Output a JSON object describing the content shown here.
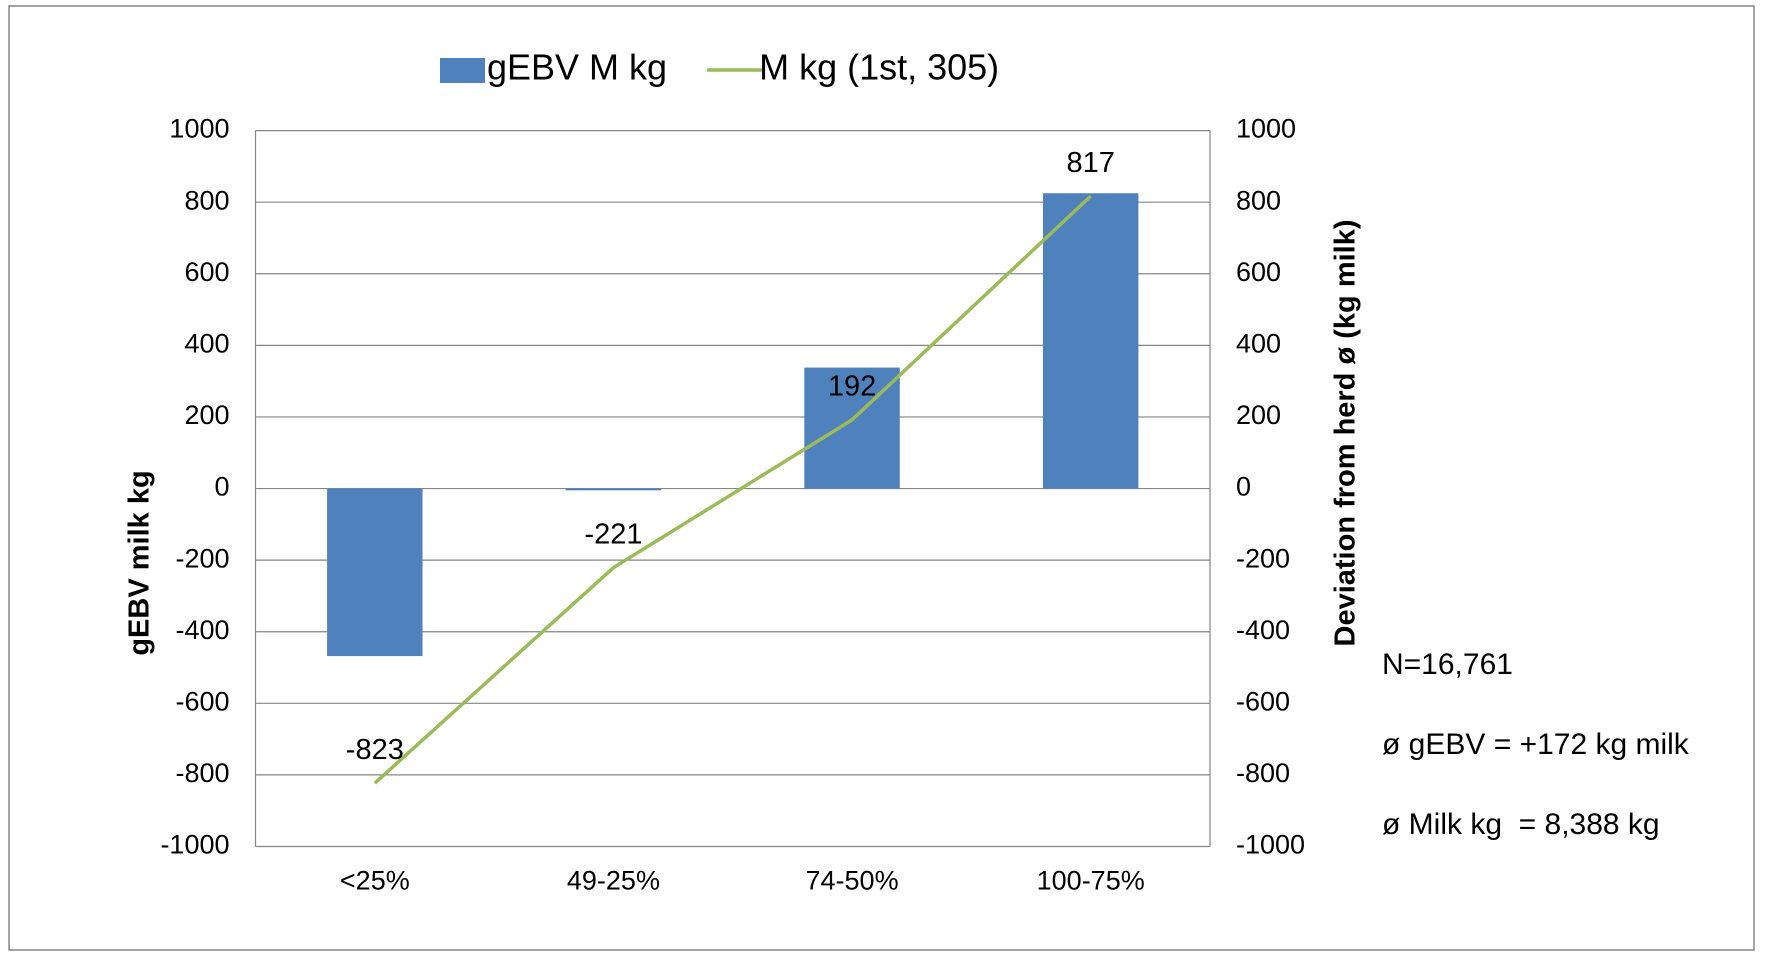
{
  "chart_data": {
    "type": "combo",
    "categories": [
      "<25%",
      "49-25%",
      "74-50%",
      "100-75%"
    ],
    "series": [
      {
        "name": "gEBV M kg",
        "type": "bar",
        "color": "#4f81bd",
        "values": [
          -468,
          -5,
          338,
          825
        ]
      },
      {
        "name": "M kg (1st, 305)",
        "type": "line",
        "axis": "y2",
        "color": "#9bbb59",
        "values": [
          -823,
          -221,
          192,
          817
        ]
      }
    ],
    "ylabel": "gEBV milk kg",
    "y2label": "Deviation from herd ø (kg milk)",
    "ylim": [
      -1000,
      1000
    ],
    "yticks": [
      -1000,
      -800,
      -600,
      -400,
      -200,
      0,
      200,
      400,
      600,
      800,
      1000
    ],
    "y2lim": [
      -1000,
      1000
    ],
    "y2ticks": [
      -1000,
      -800,
      -600,
      -400,
      -200,
      0,
      200,
      400,
      600,
      800,
      1000
    ],
    "grid": true,
    "legend": "top",
    "annotations": [
      "N=16,761",
      "ø gEBV = +172 kg milk",
      "ø Milk kg  = 8,388 kg"
    ]
  }
}
